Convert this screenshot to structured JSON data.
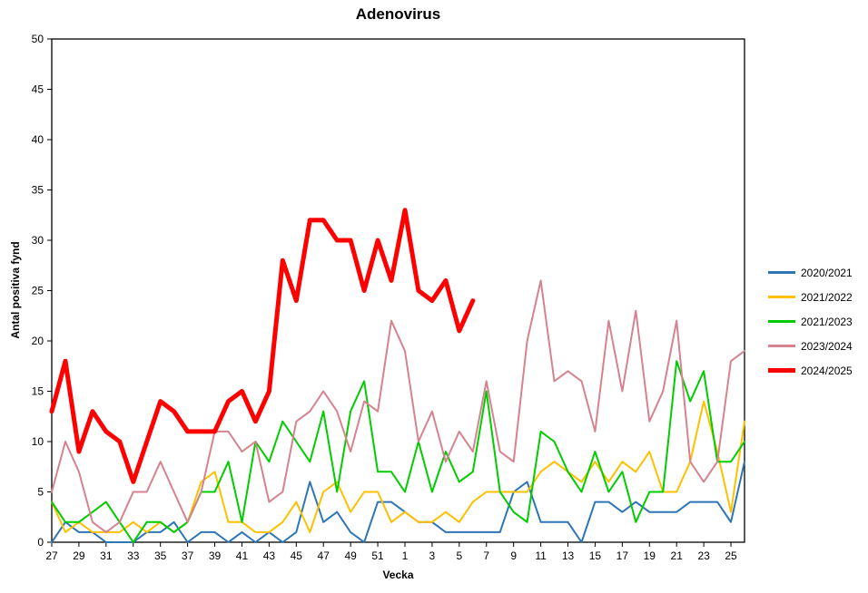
{
  "chart_data": {
    "type": "line",
    "title": "Adenovirus",
    "xlabel": "Vecka",
    "ylabel": "Antal positiva fynd",
    "ylim": [
      0,
      50
    ],
    "ytick_step": 5,
    "grid": false,
    "legend_position": "right",
    "x": [
      27,
      28,
      29,
      30,
      31,
      32,
      33,
      34,
      35,
      36,
      37,
      38,
      39,
      40,
      41,
      42,
      43,
      44,
      45,
      46,
      47,
      48,
      49,
      50,
      51,
      52,
      1,
      2,
      3,
      4,
      5,
      6,
      7,
      8,
      9,
      10,
      11,
      12,
      13,
      14,
      15,
      16,
      17,
      18,
      19,
      20,
      21,
      22,
      23,
      24,
      25,
      26
    ],
    "xtick_labels": [
      27,
      29,
      31,
      33,
      35,
      37,
      39,
      41,
      43,
      45,
      47,
      49,
      51,
      1,
      3,
      5,
      7,
      9,
      11,
      13,
      15,
      17,
      19,
      21,
      23,
      25
    ],
    "series": [
      {
        "name": "2020/2021",
        "color": "#2E75B6",
        "width": 2,
        "values": [
          0,
          2,
          1,
          1,
          0,
          0,
          0,
          1,
          1,
          2,
          0,
          1,
          1,
          0,
          1,
          0,
          1,
          0,
          1,
          6,
          2,
          3,
          1,
          0,
          4,
          4,
          3,
          2,
          2,
          1,
          1,
          1,
          1,
          1,
          5,
          6,
          2,
          2,
          2,
          0,
          4,
          4,
          3,
          4,
          3,
          3,
          3,
          4,
          4,
          4,
          2,
          8
        ]
      },
      {
        "name": "2021/2022",
        "color": "#FFC000",
        "width": 2,
        "values": [
          4,
          1,
          2,
          1,
          1,
          1,
          2,
          1,
          2,
          1,
          2,
          6,
          7,
          2,
          2,
          1,
          1,
          2,
          4,
          1,
          5,
          6,
          3,
          5,
          5,
          2,
          3,
          2,
          2,
          3,
          2,
          4,
          5,
          5,
          5,
          5,
          7,
          8,
          7,
          6,
          8,
          6,
          8,
          7,
          9,
          5,
          5,
          8,
          14,
          9,
          3,
          12
        ]
      },
      {
        "name": "2021/2023",
        "color": "#00CC00",
        "width": 2,
        "values": [
          4,
          2,
          2,
          3,
          4,
          2,
          0,
          2,
          2,
          1,
          2,
          5,
          5,
          8,
          2,
          10,
          8,
          12,
          10,
          8,
          13,
          5,
          13,
          16,
          7,
          7,
          5,
          10,
          5,
          9,
          6,
          7,
          15,
          5,
          3,
          2,
          11,
          10,
          7,
          5,
          9,
          5,
          7,
          2,
          5,
          5,
          18,
          14,
          17,
          8,
          8,
          10
        ]
      },
      {
        "name": "2023/2024",
        "color": "#D4838F",
        "width": 2,
        "values": [
          5,
          10,
          7,
          2,
          1,
          2,
          5,
          5,
          8,
          5,
          2,
          5,
          11,
          11,
          9,
          10,
          4,
          5,
          12,
          13,
          15,
          13,
          9,
          14,
          13,
          22,
          19,
          10,
          13,
          8,
          11,
          9,
          16,
          9,
          8,
          20,
          26,
          16,
          17,
          16,
          11,
          22,
          15,
          23,
          12,
          15,
          22,
          8,
          6,
          8,
          18,
          19
        ]
      },
      {
        "name": "2024/2025",
        "color": "#FF0000",
        "width": 5,
        "values": [
          13,
          18,
          9,
          13,
          11,
          10,
          6,
          10,
          14,
          13,
          11,
          11,
          11,
          14,
          15,
          12,
          15,
          28,
          24,
          32,
          32,
          30,
          30,
          25,
          30,
          26,
          33,
          25,
          24,
          26,
          21,
          24
        ]
      }
    ]
  }
}
